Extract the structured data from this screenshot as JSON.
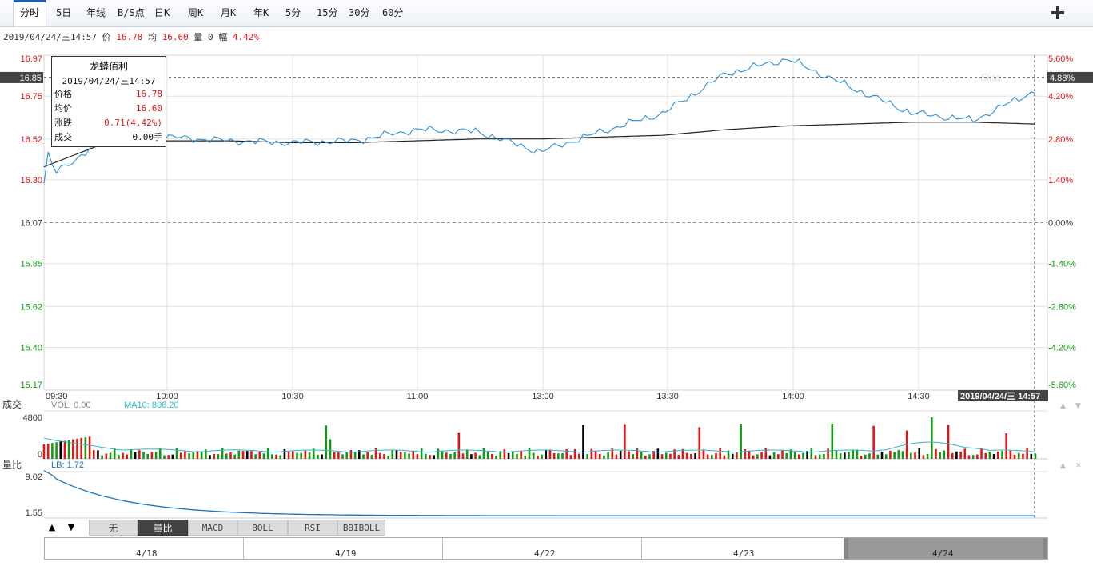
{
  "tabs": [
    "分时",
    "5日",
    "年线",
    "B/S点",
    "日K",
    "周K",
    "月K",
    "年K",
    "5分",
    "15分",
    "30分",
    "60分"
  ],
  "active_tab": "分时",
  "info": {
    "datetime": "2019/04/24/三14:57",
    "price_label": "价",
    "price": "16.78",
    "avg_label": "均",
    "avg": "16.60",
    "vol_label": "量",
    "vol": "0",
    "amp_label": "幅",
    "amp": "4.42%"
  },
  "tooltip": {
    "name": "龙蟒佰利",
    "datetime": "2019/04/24/三14:57",
    "rows": [
      {
        "label": "价格",
        "value": "16.78"
      },
      {
        "label": "均价",
        "value": "16.60"
      },
      {
        "label": "涨跌",
        "value": "0.71(4.42%)"
      },
      {
        "label": "成交",
        "value": "0.00手"
      }
    ]
  },
  "price_axis": {
    "left_labels": [
      "16.97",
      "16.75",
      "16.52",
      "16.30",
      "16.07",
      "15.85",
      "15.62",
      "15.40",
      "15.17"
    ],
    "right_labels": [
      "5.60%",
      "4.20%",
      "2.80%",
      "1.40%",
      "0.00%",
      "-1.40%",
      "-2.80%",
      "-4.20%",
      "-5.60%"
    ],
    "cursor_price": "16.85",
    "cursor_pct": "4.88%"
  },
  "time_labels": [
    "09:30",
    "10:00",
    "10:30",
    "11:00",
    "13:00",
    "13:30",
    "14:00",
    "14:30"
  ],
  "cursor_time": "2019/04/24/三 14:57",
  "volume": {
    "title": "成交",
    "vol_label": "VOL: 0.00",
    "ma_label": "MA10: 808.20",
    "axis_labels": [
      "4800",
      "0"
    ]
  },
  "ratio": {
    "title": "量比",
    "lb_label": "LB: 1.72",
    "axis_labels": [
      "9.02",
      "1.55"
    ]
  },
  "indicator_tabs": [
    "无",
    "量比",
    "MACD",
    "BOLL",
    "RSI",
    "BBIBOLL"
  ],
  "active_indicator": "量比",
  "navigator_dates": [
    "4/18",
    "4/19",
    "4/22",
    "4/23",
    "4/24"
  ],
  "colors": {
    "price_line": "#2c8fd6",
    "avg_line": "#222222",
    "up": "#e41414",
    "down": "#119911",
    "neutral": "#000000",
    "ma": "#2cb6c9",
    "ratio": "#1e74b8"
  },
  "chart_data": [
    {
      "type": "line",
      "title": "",
      "series": [
        {
          "name": "price",
          "x": [
            "09:30",
            "09:45",
            "10:00",
            "10:15",
            "10:30",
            "10:45",
            "11:00",
            "11:15",
            "11:30/13:00",
            "13:15",
            "13:30",
            "13:45",
            "14:00",
            "14:15",
            "14:30",
            "14:45",
            "14:57"
          ],
          "values": [
            16.3,
            16.52,
            16.53,
            16.51,
            16.5,
            16.51,
            16.57,
            16.56,
            16.45,
            16.56,
            16.66,
            16.87,
            16.95,
            16.8,
            16.66,
            16.62,
            16.78
          ]
        },
        {
          "name": "avg",
          "x": [
            "09:30",
            "09:45",
            "10:00",
            "10:15",
            "10:30",
            "10:45",
            "11:00",
            "11:15",
            "11:30/13:00",
            "13:15",
            "13:30",
            "13:45",
            "14:00",
            "14:15",
            "14:30",
            "14:45",
            "14:57"
          ],
          "values": [
            16.37,
            16.5,
            16.51,
            16.51,
            16.5,
            16.5,
            16.51,
            16.52,
            16.52,
            16.53,
            16.54,
            16.57,
            16.59,
            16.6,
            16.61,
            16.61,
            16.6
          ]
        }
      ],
      "ylim": [
        15.17,
        16.97
      ],
      "grid": true
    }
  ]
}
